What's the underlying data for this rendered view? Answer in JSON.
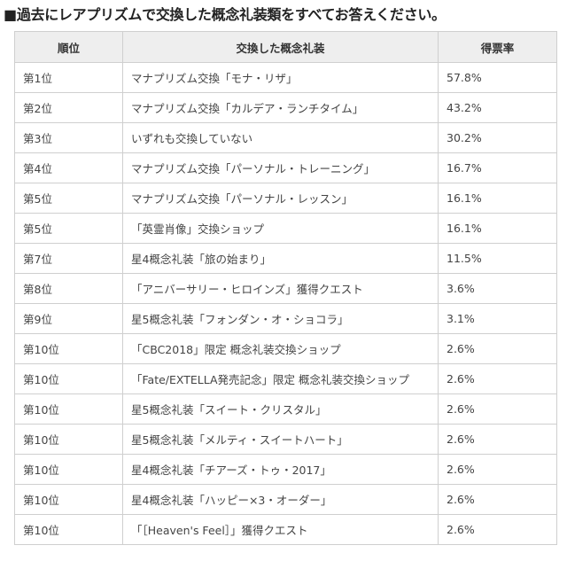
{
  "title": "■過去にレアプリズムで交換した概念礼装類をすべてお答えください。",
  "table": {
    "headers": [
      "順位",
      "交換した概念礼装",
      "得票率"
    ],
    "rows": [
      {
        "rank": "第1位",
        "item": "マナプリズム交換「モナ・リザ」",
        "rate": "57.8%"
      },
      {
        "rank": "第2位",
        "item": "マナプリズム交換「カルデア・ランチタイム」",
        "rate": "43.2%"
      },
      {
        "rank": "第3位",
        "item": "いずれも交換していない",
        "rate": "30.2%"
      },
      {
        "rank": "第4位",
        "item": "マナプリズム交換「パーソナル・トレーニング」",
        "rate": "16.7%"
      },
      {
        "rank": "第5位",
        "item": "マナプリズム交換「パーソナル・レッスン」",
        "rate": "16.1%"
      },
      {
        "rank": "第5位",
        "item": "「英霊肖像」交換ショップ",
        "rate": "16.1%"
      },
      {
        "rank": "第7位",
        "item": "星4概念礼装「旅の始まり」",
        "rate": "11.5%"
      },
      {
        "rank": "第8位",
        "item": "「アニバーサリー・ヒロインズ」獲得クエスト",
        "rate": "3.6%"
      },
      {
        "rank": "第9位",
        "item": "星5概念礼装「フォンダン・オ・ショコラ」",
        "rate": "3.1%"
      },
      {
        "rank": "第10位",
        "item": "「CBC2018」限定 概念礼装交換ショップ",
        "rate": "2.6%"
      },
      {
        "rank": "第10位",
        "item": "「Fate/EXTELLA発売記念」限定 概念礼装交換ショップ",
        "rate": "2.6%"
      },
      {
        "rank": "第10位",
        "item": "星5概念礼装「スイート・クリスタル」",
        "rate": "2.6%"
      },
      {
        "rank": "第10位",
        "item": "星5概念礼装「メルティ・スイートハート」",
        "rate": "2.6%"
      },
      {
        "rank": "第10位",
        "item": "星4概念礼装「チアーズ・トゥ・2017」",
        "rate": "2.6%"
      },
      {
        "rank": "第10位",
        "item": "星4概念礼装「ハッピー×3・オーダー」",
        "rate": "2.6%"
      },
      {
        "rank": "第10位",
        "item": "「［Heaven's Feel］」獲得クエスト",
        "rate": "2.6%"
      }
    ]
  },
  "colors": {
    "header_bg": "#eeeeee",
    "border": "#cfcfcf",
    "text": "#444444"
  }
}
